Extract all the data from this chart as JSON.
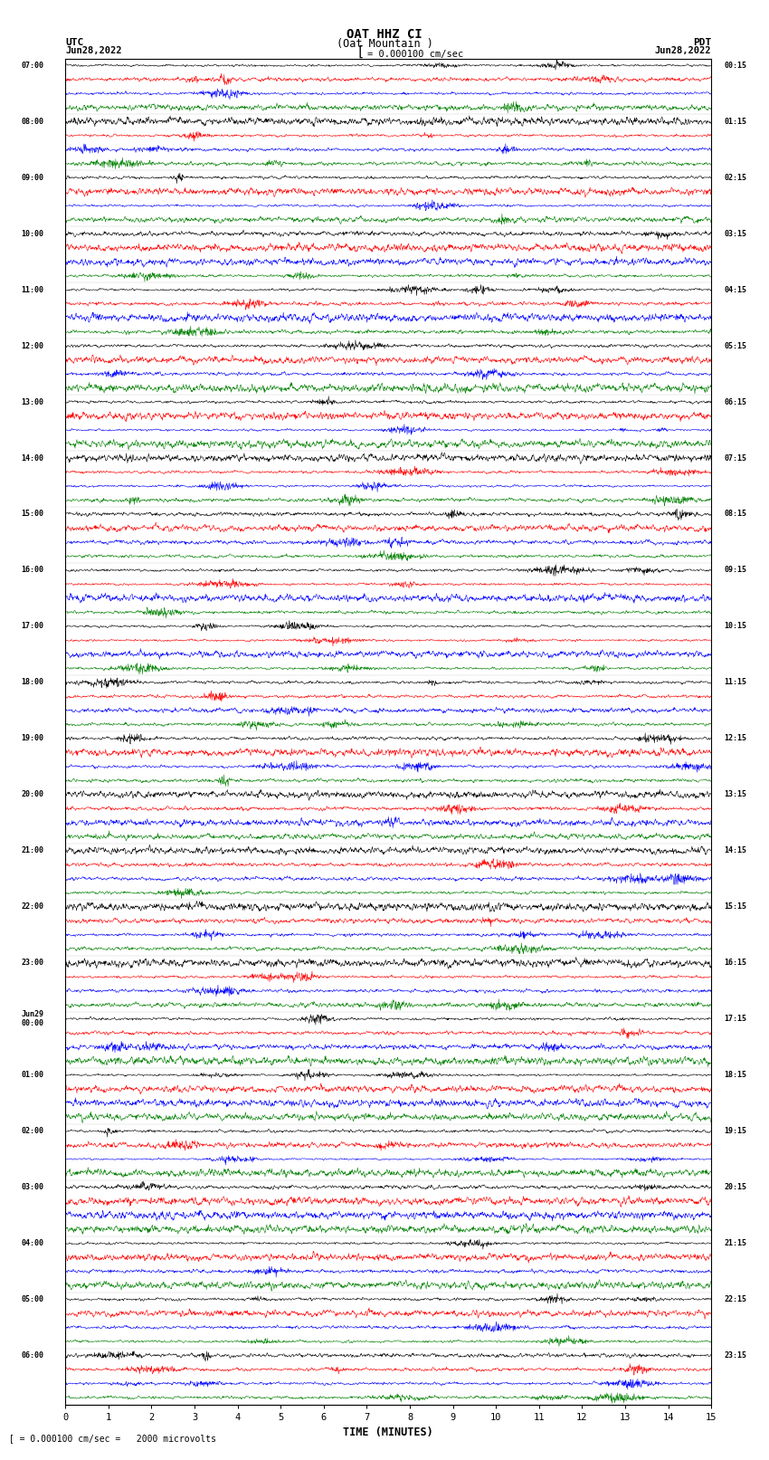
{
  "title_line1": "OAT HHZ CI",
  "title_line2": "(Oat Mountain )",
  "scale_label": "= 0.000100 cm/sec",
  "bottom_label": " = 0.000100 cm/sec =   2000 microvolts",
  "xlabel": "TIME (MINUTES)",
  "colors": [
    "black",
    "red",
    "blue",
    "green"
  ],
  "num_hour_groups": 24,
  "minutes_per_row": 15,
  "fig_width": 8.5,
  "fig_height": 16.13,
  "dpi": 100,
  "bg_color": "white",
  "left_times_utc": [
    "07:00",
    "08:00",
    "09:00",
    "10:00",
    "11:00",
    "12:00",
    "13:00",
    "14:00",
    "15:00",
    "16:00",
    "17:00",
    "18:00",
    "19:00",
    "20:00",
    "21:00",
    "22:00",
    "23:00",
    "Jun29\n00:00",
    "01:00",
    "02:00",
    "03:00",
    "04:00",
    "05:00",
    "06:00"
  ],
  "right_times_pdt": [
    "00:15",
    "01:15",
    "02:15",
    "03:15",
    "04:15",
    "05:15",
    "06:15",
    "07:15",
    "08:15",
    "09:15",
    "10:15",
    "11:15",
    "12:15",
    "13:15",
    "14:15",
    "15:15",
    "16:15",
    "17:15",
    "18:15",
    "19:15",
    "20:15",
    "21:15",
    "22:15",
    "23:15"
  ]
}
